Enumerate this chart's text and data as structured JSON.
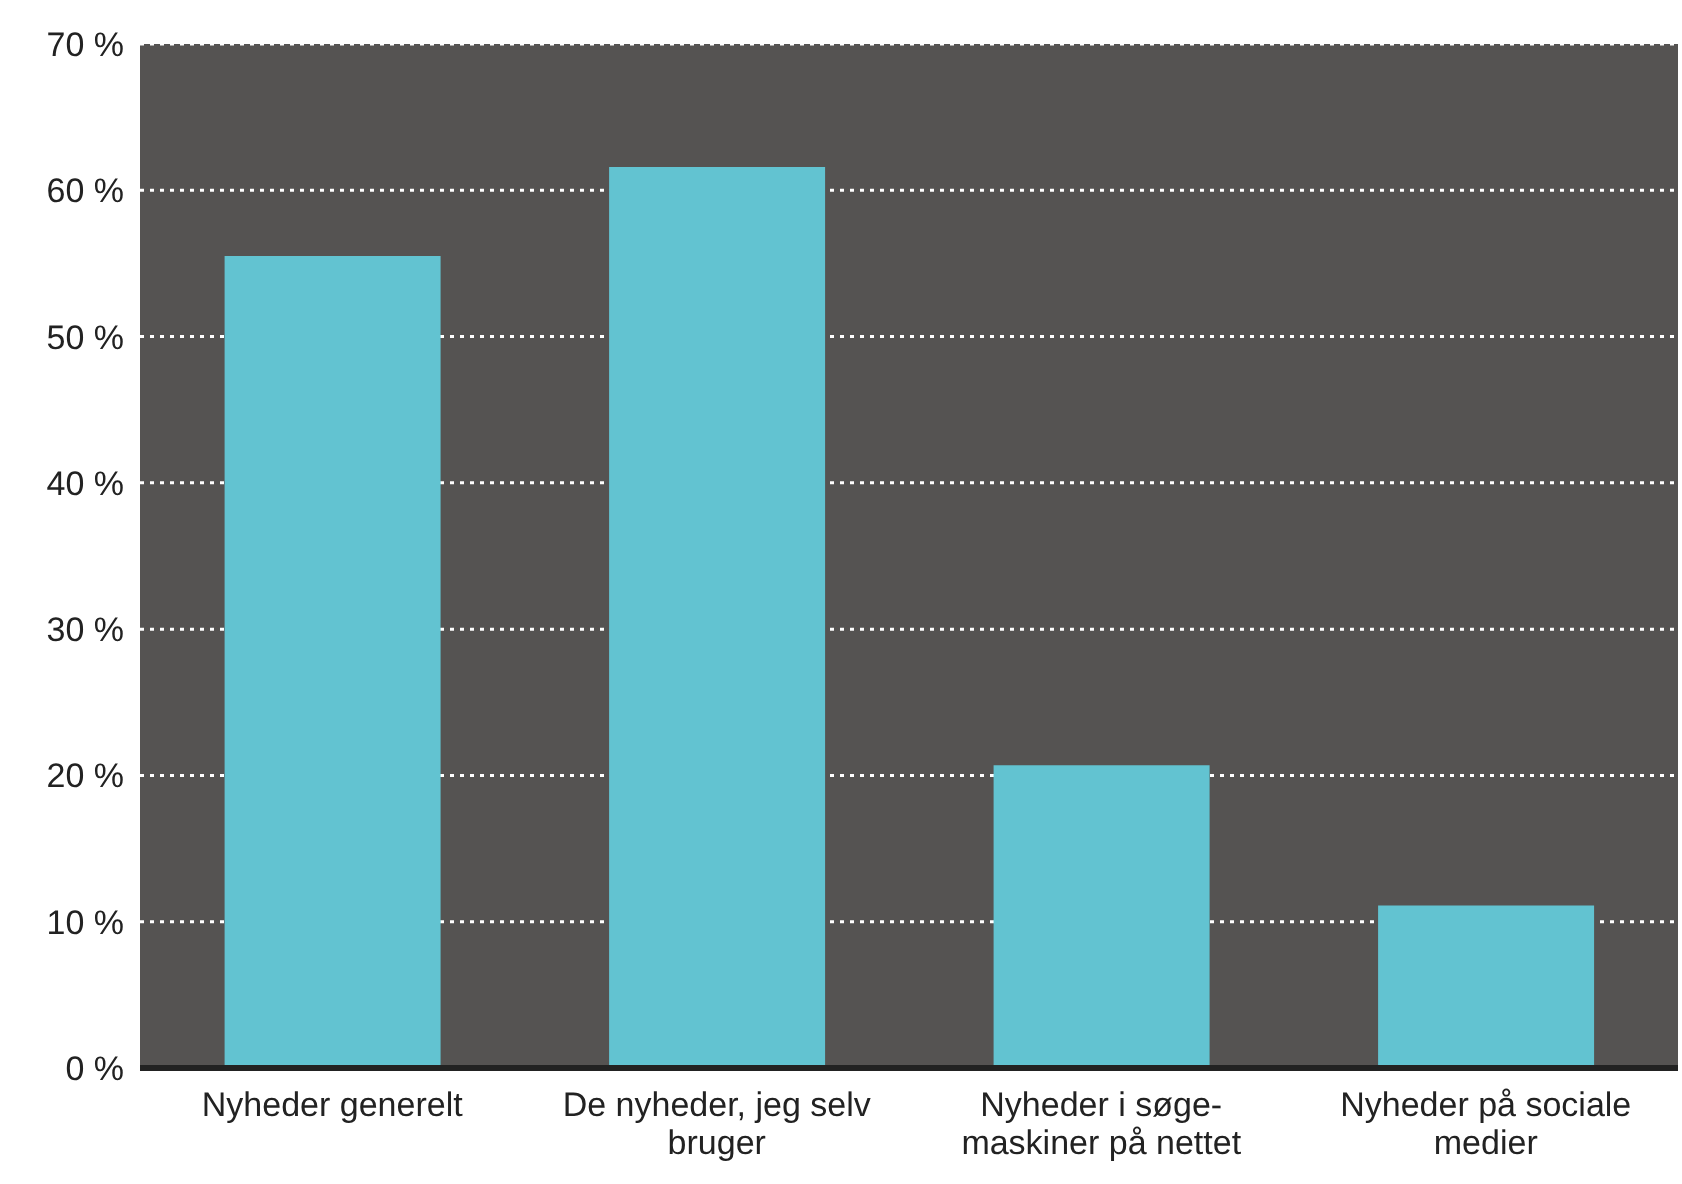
{
  "chart_data": {
    "type": "bar",
    "categories": [
      "Nyheder generelt",
      "De nyheder, jeg selv bruger",
      "Nyheder i søge-maskiner på nettet",
      "Nyheder på sociale medier"
    ],
    "values": [
      55.5,
      61.6,
      20.7,
      11.1
    ],
    "color": "#62c3d1",
    "ylim": [
      0,
      70
    ],
    "yticks": [
      {
        "value": 0,
        "label": "0 %"
      },
      {
        "value": 10,
        "label": "10 %"
      },
      {
        "value": 20,
        "label": "20 %"
      },
      {
        "value": 30,
        "label": "30 %"
      },
      {
        "value": 40,
        "label": "40 %"
      },
      {
        "value": 50,
        "label": "50 %"
      },
      {
        "value": 60,
        "label": "60 %"
      },
      {
        "value": 70,
        "label": "70 %"
      }
    ],
    "grid": "y"
  }
}
